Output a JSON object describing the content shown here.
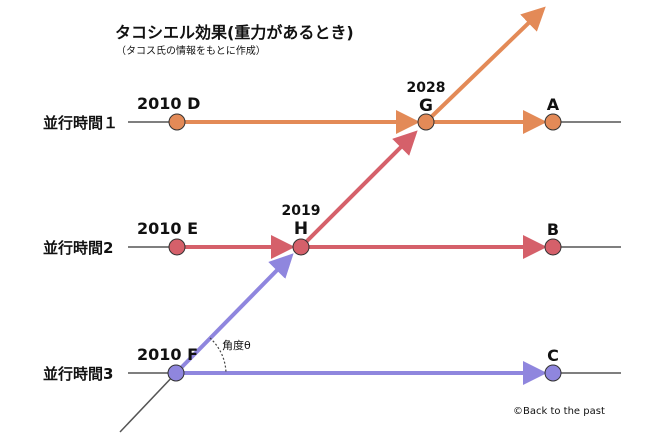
{
  "title": "タコシエル効果(重力があるとき)",
  "subtitle": "（タコス氏の情報をもとに作成）",
  "timelines": [
    {
      "label": "並行時間１"
    },
    {
      "label": "並行時間2"
    },
    {
      "label": "並行時間3"
    }
  ],
  "nodes": {
    "D": {
      "label": "2010 D"
    },
    "E": {
      "label": "2010 E"
    },
    "F": {
      "label": "2010 F"
    },
    "G": {
      "year": "2028",
      "letter": "G"
    },
    "H": {
      "year": "2019",
      "letter": "H"
    },
    "A": {
      "letter": "A"
    },
    "B": {
      "letter": "B"
    },
    "C": {
      "letter": "C"
    }
  },
  "angle_label": "角度θ",
  "credit": "©Back to the past",
  "colors": {
    "timeline1": "#e38a57",
    "timeline2": "#d5606a",
    "timeline3": "#8f86de",
    "axis": "#555555"
  }
}
